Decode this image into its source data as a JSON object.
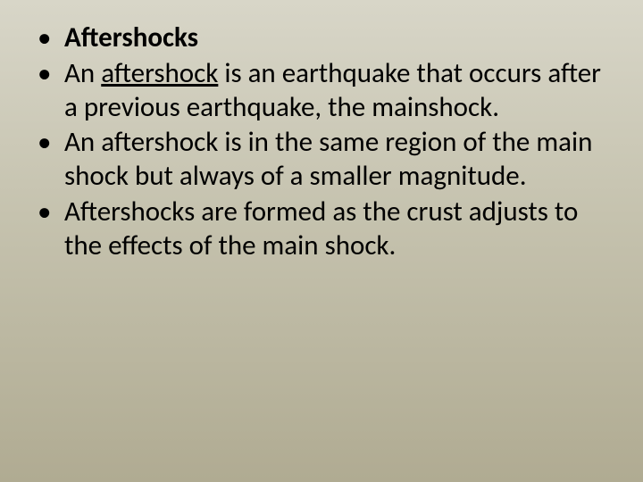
{
  "slide": {
    "background_gradient_top": "#d8d6c8",
    "background_gradient_mid": "#c5c2ae",
    "background_gradient_bottom": "#b0ab92",
    "text_color": "#000000",
    "font_size_pt": 24,
    "line_height": 1.22,
    "bullets": [
      {
        "segments": [
          {
            "text": "Aftershocks",
            "bold": true,
            "underline": false
          }
        ]
      },
      {
        "segments": [
          {
            "text": "An ",
            "bold": false,
            "underline": false
          },
          {
            "text": "aftershock",
            "bold": false,
            "underline": true
          },
          {
            "text": " is an earthquake that occurs after a previous earthquake, the mainshock.",
            "bold": false,
            "underline": false
          }
        ]
      },
      {
        "segments": [
          {
            "text": " An aftershock is in the same region of the main shock but always of a smaller magnitude.",
            "bold": false,
            "underline": false
          }
        ]
      },
      {
        "segments": [
          {
            "text": "Aftershocks are formed as the crust adjusts to the effects of the main shock.",
            "bold": false,
            "underline": false
          }
        ]
      }
    ]
  }
}
